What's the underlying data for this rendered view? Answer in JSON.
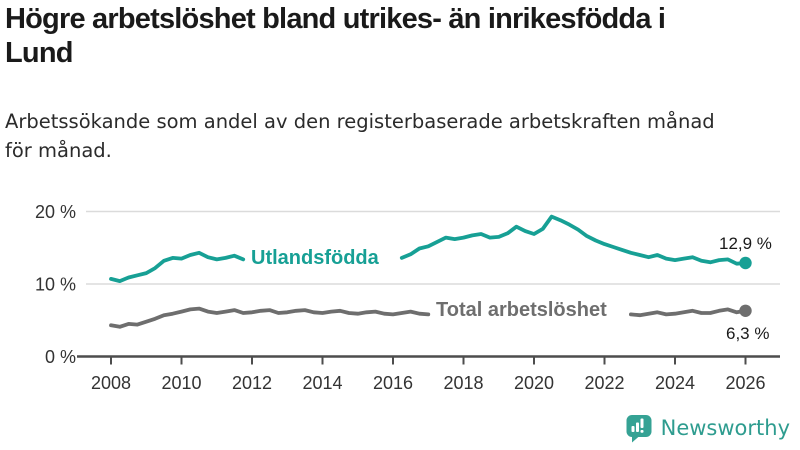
{
  "header": {
    "title": "Högre arbetslöshet bland utrikes- än inrikesfödda i\nLund",
    "subtitle": "Arbetssökande som andel av den registerbaserade arbetskraften månad\nför månad."
  },
  "chart_data": {
    "type": "line",
    "title": "Högre arbetslöshet bland utrikes- än inrikesfödda i Lund",
    "subtitle": "Arbetssökande som andel av den registerbaserade arbetskraften månad för månad.",
    "unit": "%",
    "x_range": [
      2008,
      2026
    ],
    "ylim": [
      0,
      22
    ],
    "grid": "horizontal",
    "legend_position": "inline-on-line",
    "y_ticks": [
      {
        "label": "20 %",
        "value": 20
      },
      {
        "label": "10 %",
        "value": 10
      },
      {
        "label": "0 %",
        "value": 0
      }
    ],
    "x_ticks": [
      {
        "label": "2008",
        "year": 2008
      },
      {
        "label": "2010",
        "year": 2010
      },
      {
        "label": "2012",
        "year": 2012
      },
      {
        "label": "2014",
        "year": 2014
      },
      {
        "label": "2016",
        "year": 2016
      },
      {
        "label": "2018",
        "year": 2018
      },
      {
        "label": "2020",
        "year": 2020
      },
      {
        "label": "2022",
        "year": 2022
      },
      {
        "label": "2024",
        "year": 2024
      },
      {
        "label": "2026",
        "year": 2026
      }
    ],
    "series": [
      {
        "id": "utlandsfodda",
        "name": "Utlandsfödda",
        "color": "#17a095",
        "end_value": 12.9,
        "end_label": "12,9 %",
        "label_gap": [
          2011.9,
          2016.2
        ],
        "points": [
          [
            2008.0,
            10.7
          ],
          [
            2008.25,
            10.4
          ],
          [
            2008.5,
            10.9
          ],
          [
            2008.75,
            11.2
          ],
          [
            2009.0,
            11.5
          ],
          [
            2009.25,
            12.2
          ],
          [
            2009.5,
            13.2
          ],
          [
            2009.75,
            13.6
          ],
          [
            2010.0,
            13.5
          ],
          [
            2010.25,
            14.0
          ],
          [
            2010.5,
            14.3
          ],
          [
            2010.75,
            13.7
          ],
          [
            2011.0,
            13.4
          ],
          [
            2011.25,
            13.6
          ],
          [
            2011.5,
            13.9
          ],
          [
            2011.75,
            13.4
          ],
          [
            2012.0,
            13.7
          ],
          [
            2012.25,
            13.9
          ],
          [
            2012.5,
            14.1
          ],
          [
            2012.75,
            13.6
          ],
          [
            2013.0,
            13.7
          ],
          [
            2013.25,
            13.9
          ],
          [
            2013.5,
            14.1
          ],
          [
            2013.75,
            13.7
          ],
          [
            2014.0,
            13.6
          ],
          [
            2014.25,
            13.8
          ],
          [
            2014.5,
            14.0
          ],
          [
            2014.75,
            13.5
          ],
          [
            2015.0,
            13.4
          ],
          [
            2015.25,
            13.6
          ],
          [
            2015.5,
            13.8
          ],
          [
            2015.75,
            13.3
          ],
          [
            2016.0,
            13.4
          ],
          [
            2016.25,
            13.6
          ],
          [
            2016.5,
            14.1
          ],
          [
            2016.75,
            14.9
          ],
          [
            2017.0,
            15.2
          ],
          [
            2017.25,
            15.8
          ],
          [
            2017.5,
            16.4
          ],
          [
            2017.75,
            16.2
          ],
          [
            2018.0,
            16.4
          ],
          [
            2018.25,
            16.7
          ],
          [
            2018.5,
            16.9
          ],
          [
            2018.75,
            16.4
          ],
          [
            2019.0,
            16.5
          ],
          [
            2019.25,
            17.0
          ],
          [
            2019.5,
            17.9
          ],
          [
            2019.75,
            17.3
          ],
          [
            2020.0,
            16.9
          ],
          [
            2020.25,
            17.6
          ],
          [
            2020.5,
            19.3
          ],
          [
            2020.75,
            18.8
          ],
          [
            2021.0,
            18.2
          ],
          [
            2021.25,
            17.5
          ],
          [
            2021.5,
            16.6
          ],
          [
            2021.75,
            16.0
          ],
          [
            2022.0,
            15.5
          ],
          [
            2022.25,
            15.1
          ],
          [
            2022.5,
            14.7
          ],
          [
            2022.75,
            14.3
          ],
          [
            2023.0,
            14.0
          ],
          [
            2023.25,
            13.7
          ],
          [
            2023.5,
            14.0
          ],
          [
            2023.75,
            13.5
          ],
          [
            2024.0,
            13.3
          ],
          [
            2024.25,
            13.5
          ],
          [
            2024.5,
            13.7
          ],
          [
            2024.75,
            13.2
          ],
          [
            2025.0,
            13.0
          ],
          [
            2025.25,
            13.3
          ],
          [
            2025.5,
            13.4
          ],
          [
            2025.75,
            12.8
          ],
          [
            2026.0,
            12.9
          ]
        ]
      },
      {
        "id": "total-arbetsloshet",
        "name": "Total arbetslöshet",
        "color": "#6e6e6e",
        "end_value": 6.3,
        "end_label": "6,3 %",
        "label_gap": [
          2017.05,
          2022.7
        ],
        "points": [
          [
            2008.0,
            4.3
          ],
          [
            2008.25,
            4.1
          ],
          [
            2008.5,
            4.5
          ],
          [
            2008.75,
            4.4
          ],
          [
            2009.0,
            4.8
          ],
          [
            2009.25,
            5.2
          ],
          [
            2009.5,
            5.7
          ],
          [
            2009.75,
            5.9
          ],
          [
            2010.0,
            6.2
          ],
          [
            2010.25,
            6.5
          ],
          [
            2010.5,
            6.6
          ],
          [
            2010.75,
            6.2
          ],
          [
            2011.0,
            6.0
          ],
          [
            2011.25,
            6.2
          ],
          [
            2011.5,
            6.4
          ],
          [
            2011.75,
            6.0
          ],
          [
            2012.0,
            6.1
          ],
          [
            2012.25,
            6.3
          ],
          [
            2012.5,
            6.4
          ],
          [
            2012.75,
            6.0
          ],
          [
            2013.0,
            6.1
          ],
          [
            2013.25,
            6.3
          ],
          [
            2013.5,
            6.4
          ],
          [
            2013.75,
            6.1
          ],
          [
            2014.0,
            6.0
          ],
          [
            2014.25,
            6.2
          ],
          [
            2014.5,
            6.3
          ],
          [
            2014.75,
            6.0
          ],
          [
            2015.0,
            5.9
          ],
          [
            2015.25,
            6.1
          ],
          [
            2015.5,
            6.2
          ],
          [
            2015.75,
            5.9
          ],
          [
            2016.0,
            5.8
          ],
          [
            2016.25,
            6.0
          ],
          [
            2016.5,
            6.2
          ],
          [
            2016.75,
            5.9
          ],
          [
            2017.0,
            5.8
          ],
          [
            2017.25,
            6.0
          ],
          [
            2017.5,
            6.1
          ],
          [
            2017.75,
            5.8
          ],
          [
            2018.0,
            5.6
          ],
          [
            2018.25,
            5.8
          ],
          [
            2018.5,
            6.0
          ],
          [
            2018.75,
            5.7
          ],
          [
            2019.0,
            5.6
          ],
          [
            2019.25,
            5.9
          ],
          [
            2019.5,
            6.2
          ],
          [
            2019.75,
            6.0
          ],
          [
            2020.0,
            6.2
          ],
          [
            2020.25,
            6.8
          ],
          [
            2020.5,
            7.2
          ],
          [
            2020.75,
            6.9
          ],
          [
            2021.0,
            6.6
          ],
          [
            2021.25,
            6.2
          ],
          [
            2021.5,
            5.9
          ],
          [
            2021.75,
            5.7
          ],
          [
            2022.0,
            5.6
          ],
          [
            2022.25,
            5.7
          ],
          [
            2022.5,
            5.9
          ],
          [
            2022.75,
            5.8
          ],
          [
            2023.0,
            5.7
          ],
          [
            2023.25,
            5.9
          ],
          [
            2023.5,
            6.1
          ],
          [
            2023.75,
            5.8
          ],
          [
            2024.0,
            5.9
          ],
          [
            2024.25,
            6.1
          ],
          [
            2024.5,
            6.3
          ],
          [
            2024.75,
            6.0
          ],
          [
            2025.0,
            6.0
          ],
          [
            2025.25,
            6.3
          ],
          [
            2025.5,
            6.5
          ],
          [
            2025.75,
            6.1
          ],
          [
            2026.0,
            6.3
          ]
        ]
      }
    ]
  },
  "footer": {
    "brand": "Newsworthy",
    "brand_color": "#2e9c8f"
  }
}
